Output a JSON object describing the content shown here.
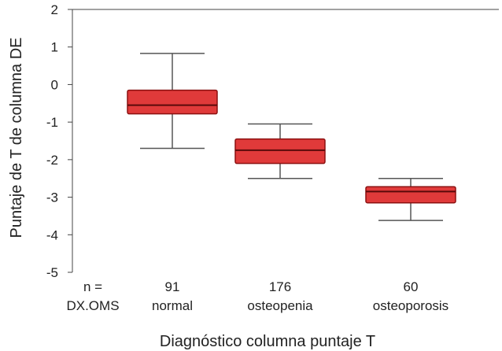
{
  "chart_data": {
    "type": "box",
    "ylabel": "Puntaje de T de columna DE",
    "xlabel": "Diagnóstico columna puntaje T",
    "ylim": [
      -5,
      2
    ],
    "yticks": [
      2,
      1,
      0,
      -1,
      -2,
      -3,
      -4,
      -5
    ],
    "grid": false,
    "row_headers": {
      "n": "n =",
      "group": "DX.OMS"
    },
    "box_color": "#e03a3a",
    "box_edge_color": "#8c1010",
    "series": [
      {
        "category": "normal",
        "n": "91",
        "min": -1.7,
        "q1": -0.78,
        "median": -0.55,
        "q3": -0.15,
        "max": 0.83
      },
      {
        "category": "osteopenia",
        "n": "176",
        "min": -2.5,
        "q1": -2.1,
        "median": -1.75,
        "q3": -1.45,
        "max": -1.05
      },
      {
        "category": "osteoporosis",
        "n": "60",
        "min": -3.62,
        "q1": -3.15,
        "median": -2.85,
        "q3": -2.72,
        "max": -2.5
      }
    ]
  }
}
